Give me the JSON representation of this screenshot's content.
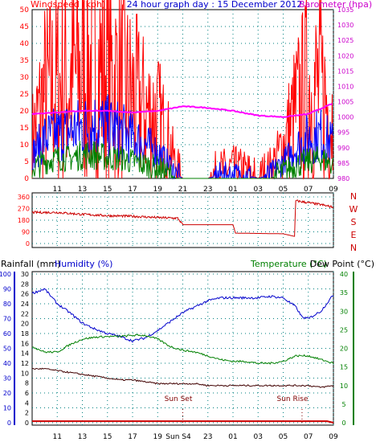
{
  "header": {
    "windspeed_label": "Windspeed (kph)",
    "title": "24 hour graph day : 15 December 2012",
    "barometer_label": "Barometer (hpa)"
  },
  "colors": {
    "wind_gust": "#ff0000",
    "wind_avg": "#0000ff",
    "wind_low": "#008000",
    "barometer": "#ff00ff",
    "direction": "#cc0000",
    "humidity": "#0000cc",
    "temperature": "#008000",
    "dewpoint": "#400000",
    "rain": "#cc0000",
    "grid": "#008080",
    "axis_left": "#ff0000",
    "axis_right": "#cc00cc"
  },
  "time_ticks": [
    "11",
    "13",
    "15",
    "17",
    "19",
    "21",
    "23",
    "01",
    "03",
    "05",
    "07",
    "09"
  ],
  "chart_data": [
    {
      "type": "line",
      "name": "wind-barometer",
      "yleft_ticks": [
        "0",
        "5",
        "10",
        "15",
        "20",
        "25",
        "30",
        "35",
        "40",
        "45",
        "50"
      ],
      "yright_ticks": [
        "980",
        "985",
        "990",
        "995",
        "1000",
        "1005",
        "1010",
        "1015",
        "1020",
        "1025",
        "1030",
        "1035"
      ],
      "ylim_left": [
        0,
        50
      ],
      "ylim_right": [
        980,
        1035
      ],
      "series": [
        {
          "name": "gust",
          "hours": [
            9,
            10,
            11,
            12,
            13,
            14,
            15,
            16,
            17,
            18,
            19,
            20,
            20.5,
            21,
            22,
            23,
            24,
            25,
            26,
            27,
            28,
            29,
            30,
            31,
            32,
            33
          ],
          "values": [
            12,
            25,
            27,
            29,
            32,
            33,
            31,
            28,
            24,
            20,
            18,
            10,
            3,
            0,
            0,
            0,
            2,
            3,
            2,
            0,
            3,
            10,
            20,
            27,
            26,
            18
          ]
        },
        {
          "name": "average",
          "hours": [
            9,
            10,
            11,
            12,
            13,
            14,
            15,
            16,
            17,
            18,
            19,
            20,
            20.5,
            21,
            22,
            23,
            24,
            25,
            26,
            27,
            28,
            29,
            30,
            31,
            32,
            33
          ],
          "values": [
            7,
            12,
            13,
            14,
            15,
            16,
            15,
            14,
            12,
            10,
            8,
            4,
            1,
            0,
            0,
            0,
            1,
            1,
            1,
            0,
            1,
            5,
            9,
            12,
            13,
            10
          ]
        },
        {
          "name": "low",
          "hours": [
            9,
            10,
            11,
            12,
            13,
            14,
            15,
            16,
            17,
            18,
            19,
            20,
            20.5,
            21,
            22,
            23,
            24,
            25,
            26,
            27,
            28,
            29,
            30,
            31,
            32,
            33
          ],
          "values": [
            3,
            5,
            6,
            6,
            7,
            7,
            6,
            6,
            5,
            4,
            3,
            1,
            0,
            0,
            0,
            0,
            0,
            0,
            0,
            0,
            0,
            2,
            4,
            5,
            6,
            4
          ]
        },
        {
          "name": "barometer",
          "hours": [
            9,
            11,
            13,
            15,
            17,
            19,
            21,
            23,
            25,
            27,
            29,
            31,
            33
          ],
          "values": [
            1001,
            1001.5,
            1002,
            1002,
            1001.5,
            1002,
            1003.5,
            1003,
            1002,
            1000.5,
            1000,
            1001,
            1004.5
          ]
        }
      ]
    },
    {
      "type": "line",
      "name": "wind-direction",
      "y_ticks": [
        "360",
        "270",
        "180",
        "90",
        "0"
      ],
      "compass": [
        "N",
        "W",
        "S",
        "E",
        "N"
      ],
      "ylim": [
        0,
        360
      ],
      "hours": [
        9,
        11,
        13,
        15,
        17,
        19,
        20.6,
        21,
        25,
        25.2,
        29,
        29.9,
        30,
        32,
        33
      ],
      "values": [
        240,
        240,
        225,
        215,
        210,
        200,
        195,
        145,
        145,
        80,
        75,
        55,
        330,
        300,
        280
      ]
    },
    {
      "type": "line",
      "name": "humidity-temperature",
      "rainfall_label": "Rainfall (mm)",
      "humidity_label": "Humidity (%)",
      "temperature_label": "Temperature (°C)",
      "dewpoint_label": "Dew Point (°C)",
      "humidity_ticks": [
        "0",
        "10",
        "20",
        "30",
        "40",
        "50",
        "60",
        "70",
        "80",
        "90",
        "100"
      ],
      "rain_ticks": [
        "0",
        "2",
        "4",
        "6",
        "8",
        "10",
        "12",
        "14",
        "16",
        "18",
        "20",
        "22",
        "24",
        "26",
        "28",
        "30"
      ],
      "temp_ticks": [
        "0",
        "5",
        "10",
        "15",
        "20",
        "25",
        "30",
        "35",
        "40"
      ],
      "sunset_label": "Sun Set",
      "sunrise_label": "Sun Rise",
      "sunset_hour": 21,
      "sunrise_hour": 30.5,
      "bottom_marker": "Sun S4",
      "series": [
        {
          "name": "humidity",
          "hours": [
            9,
            10,
            11,
            12,
            13,
            14,
            15,
            16,
            17,
            18,
            19,
            20,
            21,
            22,
            23,
            24,
            25,
            26,
            27,
            28,
            29,
            30,
            30.5,
            31,
            32,
            33
          ],
          "values": [
            87,
            90,
            80,
            74,
            67,
            63,
            60,
            58,
            55,
            57,
            62,
            68,
            74,
            78,
            82,
            84,
            84,
            84,
            84,
            85,
            84,
            78,
            71,
            70,
            75,
            86
          ]
        },
        {
          "name": "temperature",
          "hours": [
            9,
            10,
            11,
            12,
            13,
            14,
            15,
            16,
            17,
            18,
            19,
            20,
            21,
            22,
            23,
            24,
            25,
            26,
            27,
            28,
            29,
            30,
            31,
            32,
            33
          ],
          "values": [
            20.5,
            19,
            19,
            21,
            22.5,
            23,
            23.2,
            23.2,
            23.5,
            23.5,
            22.5,
            20.5,
            19.5,
            19,
            18,
            17,
            16.5,
            16.5,
            16,
            16,
            16.5,
            18,
            18,
            17,
            16
          ]
        },
        {
          "name": "dewpoint",
          "hours": [
            9,
            10,
            11,
            12,
            13,
            14,
            15,
            16,
            17,
            18,
            19,
            20,
            21,
            22,
            23,
            24,
            25,
            26,
            27,
            28,
            29,
            30,
            31,
            32,
            33
          ],
          "values": [
            14.5,
            14.5,
            14,
            13.5,
            13,
            12.5,
            12,
            11.5,
            11.5,
            11,
            10.5,
            10.5,
            10.5,
            10.5,
            10,
            10,
            10,
            10,
            10,
            10,
            10,
            10,
            10,
            9.5,
            10
          ]
        },
        {
          "name": "rainfall",
          "hours": [
            9,
            32.5,
            33
          ],
          "values": [
            0.3,
            0.3,
            0
          ]
        }
      ]
    }
  ]
}
